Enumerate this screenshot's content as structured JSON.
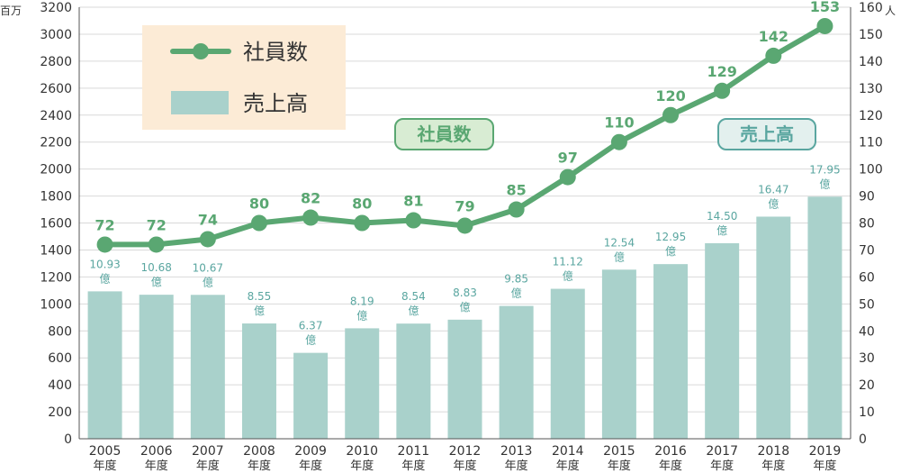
{
  "colors": {
    "line": "#5aa772",
    "bar": "#a9d1cb",
    "bar_label": "#5aa6a0",
    "grid": "#d9d9d9",
    "axis": "#555555",
    "legend_bg": "#fcebd6",
    "tag_bg": "#d8ecd3"
  },
  "units": {
    "left": "百万",
    "right": "人"
  },
  "x_sub_label": "年度",
  "legend": {
    "line_label": "社員数",
    "bar_label": "売上高"
  },
  "tags": {
    "line": "社員数",
    "bar": "売上高"
  },
  "chart_data": {
    "type": "bar",
    "categories": [
      "2005",
      "2006",
      "2007",
      "2008",
      "2009",
      "2010",
      "2011",
      "2012",
      "2013",
      "2014",
      "2015",
      "2016",
      "2017",
      "2018",
      "2019"
    ],
    "series": [
      {
        "name": "売上高",
        "type": "bar",
        "axis": "left",
        "values": [
          1093,
          1068,
          1067,
          855,
          637,
          819,
          854,
          883,
          985,
          1112,
          1254,
          1295,
          1450,
          1647,
          1795
        ],
        "labels": [
          "10.93",
          "10.68",
          "10.67",
          "8.55",
          "6.37",
          "8.19",
          "8.54",
          "8.83",
          "9.85",
          "11.12",
          "12.54",
          "12.95",
          "14.50",
          "16.47",
          "17.95"
        ],
        "label_unit": "億"
      },
      {
        "name": "社員数",
        "type": "line",
        "axis": "right",
        "values": [
          72,
          72,
          74,
          80,
          82,
          80,
          81,
          79,
          85,
          97,
          110,
          120,
          129,
          142,
          153
        ]
      }
    ],
    "y_left": {
      "min": 0,
      "max": 3200,
      "step": 200,
      "unit": "百万"
    },
    "y_right": {
      "min": 0,
      "max": 160,
      "step": 10,
      "unit": "人"
    },
    "grid": true,
    "legend_position": "top-left"
  }
}
